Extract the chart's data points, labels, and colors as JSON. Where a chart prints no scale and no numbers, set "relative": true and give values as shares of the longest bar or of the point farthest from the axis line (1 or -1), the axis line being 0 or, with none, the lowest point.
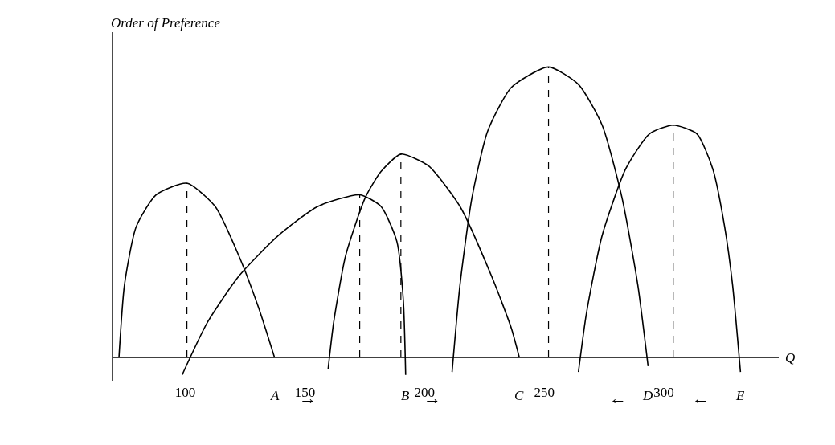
{
  "chart_data": {
    "type": "line",
    "relative": true,
    "xlabel": "Q",
    "ylabel": "Order of Preference",
    "xlim": [
      69.6,
      348
    ],
    "xticks": [
      100,
      150,
      200,
      250,
      300
    ],
    "line_style": "solid",
    "marker": "none",
    "legend": false,
    "tick_labels": "x",
    "series": [
      {
        "name": "A",
        "color": "#000000",
        "x": [
          72.3,
          74.6,
          79.5,
          87.8,
          100.7,
          112.5,
          122.4,
          130.7,
          137.3
        ],
        "values": [
          0,
          0.25,
          0.45,
          0.56,
          0.6,
          0.52,
          0.35,
          0.17,
          0
        ]
      },
      {
        "name": "B",
        "color": "#000000",
        "x": [
          98.7,
          109.2,
          122.4,
          138.9,
          155.4,
          172.9,
          181.8,
          188.4,
          191.1,
          192.1
        ],
        "values": [
          -0.06,
          0.12,
          0.28,
          0.42,
          0.52,
          0.56,
          0.52,
          0.4,
          0.2,
          -0.06
        ]
      },
      {
        "name": "C",
        "color": "#000000",
        "x": [
          159.7,
          162.0,
          167.0,
          175.2,
          181.8,
          190.1,
          201.6,
          214.8,
          228.0,
          236.3,
          239.6
        ],
        "values": [
          -0.04,
          0.12,
          0.35,
          0.55,
          0.64,
          0.7,
          0.66,
          0.52,
          0.28,
          0.1,
          0
        ]
      },
      {
        "name": "D",
        "color": "#000000",
        "x": [
          211.5,
          214.8,
          219.8,
          226.4,
          236.3,
          251.8,
          264.3,
          274.2,
          282.5,
          289.1,
          293.4
        ],
        "values": [
          -0.05,
          0.25,
          0.55,
          0.78,
          0.93,
          1.0,
          0.94,
          0.8,
          0.55,
          0.25,
          -0.03
        ]
      },
      {
        "name": "E",
        "color": "#000000",
        "x": [
          264.3,
          267.6,
          274.2,
          284.1,
          294.0,
          303.9,
          313.8,
          320.4,
          325.4,
          328.7,
          332.0
        ],
        "values": [
          -0.05,
          0.15,
          0.42,
          0.65,
          0.77,
          0.8,
          0.77,
          0.65,
          0.45,
          0.25,
          -0.05
        ]
      }
    ],
    "ref_lines": [
      {
        "axis": "x",
        "value": 100.7,
        "color": "#000000",
        "line_style": "dashed"
      },
      {
        "axis": "x",
        "value": 172.9,
        "color": "#000000",
        "line_style": "dashed"
      },
      {
        "axis": "x",
        "value": 190.1,
        "color": "#000000",
        "line_style": "dashed"
      },
      {
        "axis": "x",
        "value": 251.8,
        "color": "#000000",
        "line_style": "dashed"
      },
      {
        "axis": "x",
        "value": 303.9,
        "color": "#000000",
        "line_style": "dashed"
      }
    ],
    "annotations": [
      "→",
      "→",
      "←",
      "←"
    ]
  }
}
